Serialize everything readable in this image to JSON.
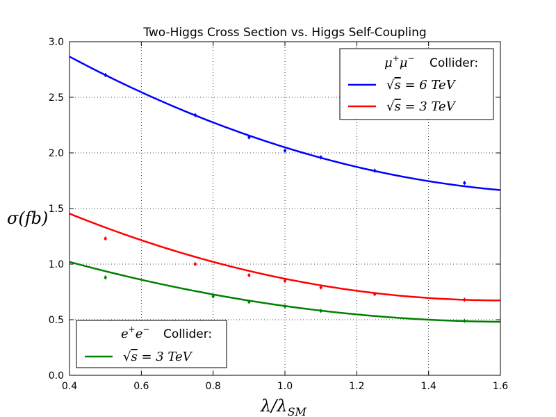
{
  "chart_data": {
    "type": "line",
    "title": "Two-Higgs Cross Section vs. Higgs Self-Coupling",
    "xlabel": "λ/λ_SM",
    "ylabel": "σ(fb)",
    "xlim": [
      0.4,
      1.6
    ],
    "ylim": [
      0.0,
      3.0
    ],
    "x_ticks": [
      "0.4",
      "0.6",
      "0.8",
      "1.0",
      "1.2",
      "1.4",
      "1.6"
    ],
    "y_ticks": [
      "0.0",
      "0.5",
      "1.0",
      "1.5",
      "2.0",
      "2.5",
      "3.0"
    ],
    "grid": true,
    "series": [
      {
        "name": "√s = 6 TeV",
        "collider": "μ⁺μ⁻ Collider:",
        "color": "#0000ff",
        "curve_coeffs": [
          0.6,
          -2.2,
          3.65
        ],
        "points": [
          {
            "x": 0.5,
            "y": 2.7
          },
          {
            "x": 0.75,
            "y": 2.34
          },
          {
            "x": 0.9,
            "y": 2.14
          },
          {
            "x": 1.0,
            "y": 2.02
          },
          {
            "x": 1.1,
            "y": 1.96
          },
          {
            "x": 1.25,
            "y": 1.84
          },
          {
            "x": 1.5,
            "y": 1.73
          }
        ]
      },
      {
        "name": "√s = 3 TeV",
        "collider": "μ⁺μ⁻ Collider:",
        "color": "#ff0000",
        "curve_coeffs": [
          0.542,
          -1.7342,
          2.0607
        ],
        "points": [
          {
            "x": 0.5,
            "y": 1.23
          },
          {
            "x": 0.75,
            "y": 1.0
          },
          {
            "x": 0.9,
            "y": 0.9
          },
          {
            "x": 1.0,
            "y": 0.85
          },
          {
            "x": 1.1,
            "y": 0.79
          },
          {
            "x": 1.25,
            "y": 0.73
          },
          {
            "x": 1.5,
            "y": 0.68
          }
        ]
      },
      {
        "name": "√s = 3 TeV",
        "collider": "e⁺e⁻ Collider:",
        "color": "#008000",
        "curve_coeffs": [
          0.3542,
          -1.1575,
          1.4264
        ],
        "points": [
          {
            "x": 0.5,
            "y": 0.88
          },
          {
            "x": 0.8,
            "y": 0.71
          },
          {
            "x": 0.9,
            "y": 0.66
          },
          {
            "x": 1.0,
            "y": 0.62
          },
          {
            "x": 1.1,
            "y": 0.58
          },
          {
            "x": 1.5,
            "y": 0.49
          }
        ]
      }
    ],
    "legends": [
      {
        "placement": "top-right",
        "header": "Collider:",
        "particle": "μ",
        "entries": [
          "6 TeV",
          "3 TeV"
        ]
      },
      {
        "placement": "bottom-left",
        "header": "Collider:",
        "particle": "e",
        "entries": [
          "3 TeV"
        ]
      }
    ]
  }
}
